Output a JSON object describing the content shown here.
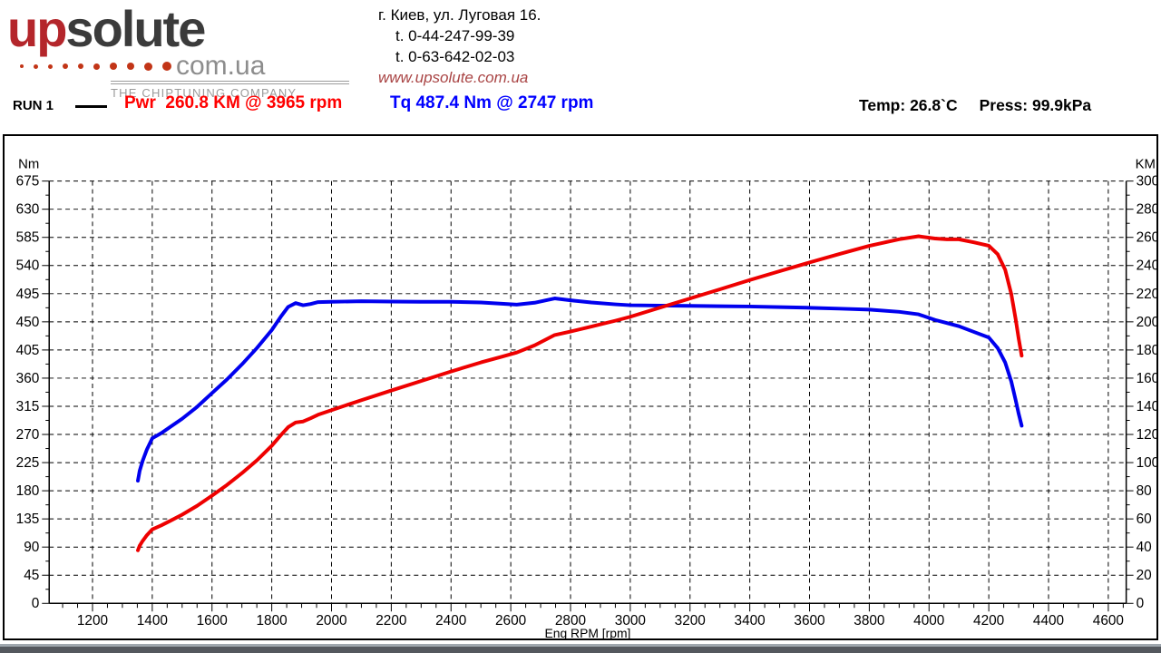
{
  "logo": {
    "part1": "up",
    "part2": "solute",
    "suffix": "com.ua",
    "tagline": "THE CHIPTUNING COMPANY",
    "dot_sizes": [
      4,
      5,
      5,
      6,
      6,
      7,
      8,
      8,
      9,
      10
    ],
    "colors": {
      "up": "#b4262b",
      "solute": "#3b3b3b",
      "dots": "#c23517",
      "suffix": "#8d8d8d",
      "tagline": "#9b9b9b"
    }
  },
  "contact": {
    "address": "г. Киев, ул. Луговая 16.",
    "phone1": "t. 0-44-247-99-39",
    "phone2": "t. 0-63-642-02-03",
    "website": "www.upsolute.com.ua"
  },
  "legend": {
    "run_label": "RUN 1",
    "power": "Pwr  260.8 KM @ 3965 rpm",
    "torque": "Tq 487.4 Nm @ 2747 rpm",
    "temp": "Temp: 26.8`C",
    "press": "Press: 99.9kPa",
    "power_color": "#ff0000",
    "torque_color": "#0000ff"
  },
  "chart_data": {
    "type": "line",
    "title": "",
    "xlabel": "Eng RPM [rpm]",
    "grid": "dashed",
    "x_axis": {
      "min": 1055,
      "max": 4660,
      "tick_start": 1200,
      "tick_end": 4600,
      "tick_step": 200,
      "minor_step": 50
    },
    "left_axis": {
      "label": "Nm",
      "min": 0,
      "max": 675,
      "step": 45,
      "minor_step": 22.5
    },
    "right_axis": {
      "label": "KM",
      "min": 0,
      "max": 300,
      "step": 20,
      "minor_step": 10
    },
    "x": [
      1352,
      1358,
      1368,
      1382,
      1400,
      1430,
      1460,
      1500,
      1550,
      1600,
      1650,
      1700,
      1750,
      1800,
      1830,
      1855,
      1880,
      1905,
      1930,
      1955,
      2000,
      2100,
      2200,
      2300,
      2400,
      2500,
      2570,
      2620,
      2680,
      2747,
      2800,
      2870,
      2950,
      3000,
      3100,
      3200,
      3300,
      3400,
      3500,
      3600,
      3700,
      3800,
      3900,
      3965,
      4020,
      4060,
      4100,
      4150,
      4200,
      4230,
      4255,
      4275,
      4290,
      4300,
      4310
    ],
    "series": [
      {
        "name": "Torque",
        "axis": "left",
        "color": "#0000ee",
        "peak": {
          "value": 487.4,
          "unit": "Nm",
          "rpm": 2747
        },
        "values": [
          196,
          212,
          228,
          246,
          264,
          272,
          282,
          295,
          314,
          336,
          358,
          382,
          408,
          437,
          458,
          474,
          480,
          476.5,
          478.5,
          481.5,
          482,
          483,
          482.5,
          482,
          482,
          481,
          479,
          477.5,
          480.5,
          487.4,
          484.5,
          481,
          478,
          476.5,
          476,
          475.5,
          475,
          474.5,
          473.5,
          472.5,
          471,
          469.5,
          466,
          462,
          453,
          448,
          443,
          434,
          425,
          408,
          385,
          355,
          325,
          303,
          284
        ]
      },
      {
        "name": "Power",
        "axis": "right",
        "color": "#ee0000",
        "peak": {
          "value": 260.8,
          "unit": "KM",
          "rpm": 3965
        },
        "values": [
          37.7,
          41,
          44.4,
          48.4,
          52.6,
          55.4,
          58.6,
          63,
          69.3,
          76.5,
          84.1,
          92.5,
          101.6,
          112,
          119.4,
          125.2,
          128.5,
          129.2,
          131.5,
          134,
          137.3,
          144.4,
          151.2,
          157.9,
          164.7,
          171.2,
          175.2,
          178.2,
          183.3,
          190.6,
          193.1,
          196.6,
          200.8,
          203.6,
          210.1,
          216.6,
          223.1,
          229.7,
          236,
          242.2,
          248.2,
          254,
          258.7,
          260.8,
          259.2,
          258.6,
          258.6,
          256.5,
          254.1,
          248,
          237,
          220,
          202,
          188,
          176
        ]
      }
    ]
  }
}
